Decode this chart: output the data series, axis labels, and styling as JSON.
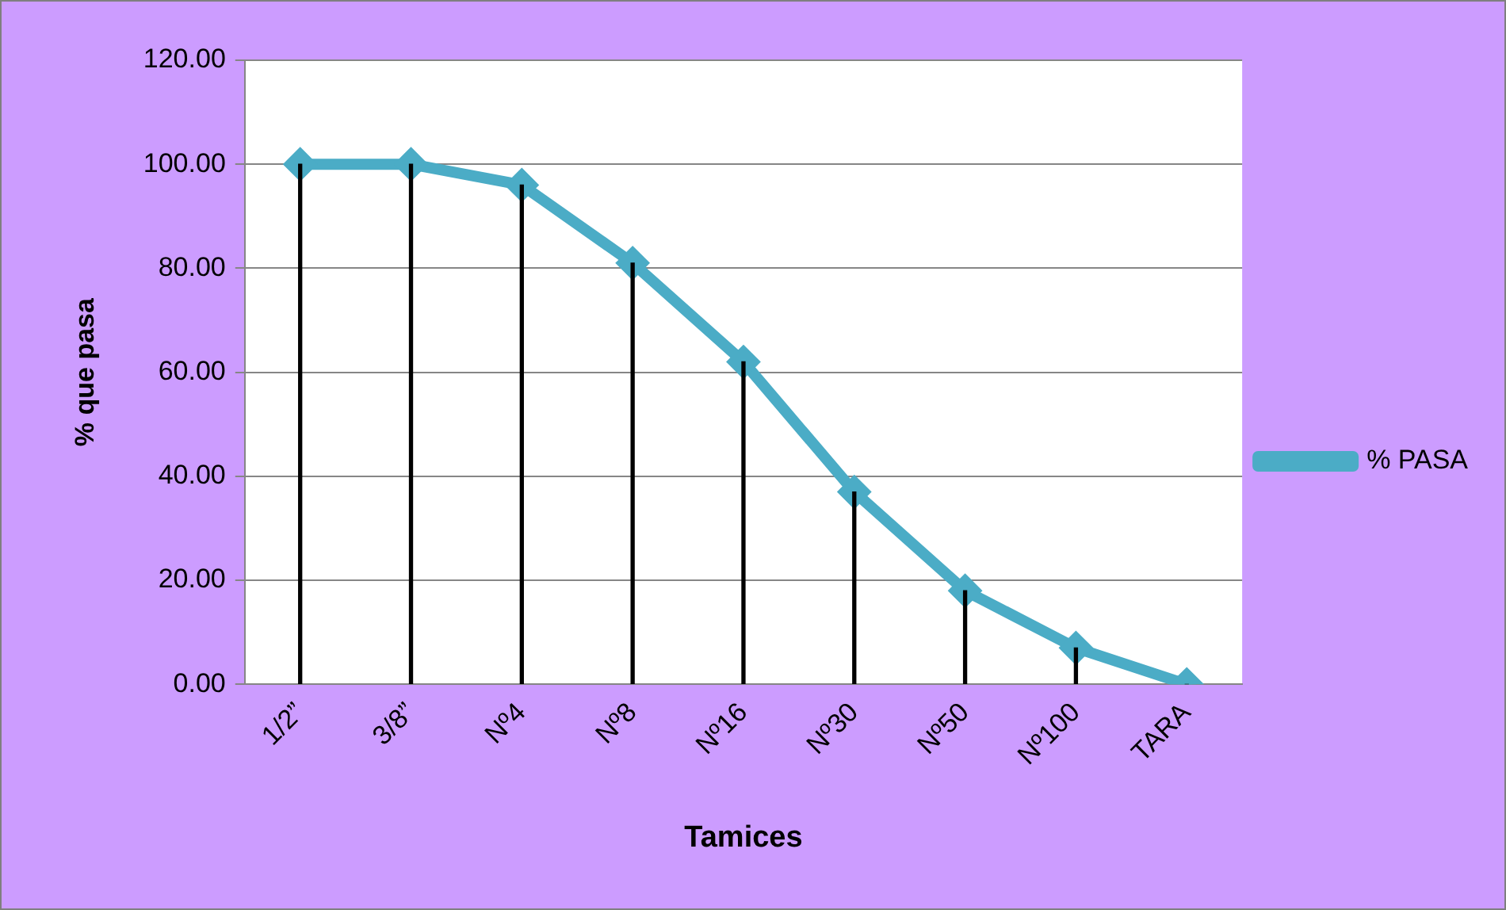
{
  "chart_data": {
    "type": "line",
    "xlabel": "Tamices",
    "ylabel": "% que pasa",
    "categories": [
      "1/2”",
      "3/8”",
      "Nº4",
      "Nº8",
      "Nº16",
      "Nº30",
      "Nº50",
      "Nº100",
      "TARA"
    ],
    "series": [
      {
        "type": "bar",
        "color": "#000000",
        "values": [
          100,
          100,
          96,
          81,
          62,
          37,
          18,
          7,
          0
        ]
      },
      {
        "name": "% PASA",
        "color": "#4bacc6",
        "values": [
          100,
          100,
          96,
          81,
          62,
          37,
          18,
          7,
          0
        ]
      }
    ],
    "ylim": [
      0,
      120
    ],
    "yticks": [
      {
        "value": 0,
        "label": "0.00"
      },
      {
        "value": 20,
        "label": "20.00"
      },
      {
        "value": 40,
        "label": "40.00"
      },
      {
        "value": 60,
        "label": "60.00"
      },
      {
        "value": 80,
        "label": "80.00"
      },
      {
        "value": 100,
        "label": "100.00"
      },
      {
        "value": 120,
        "label": "120.00"
      }
    ],
    "grid": "y",
    "legend": "right",
    "marker": "diamond",
    "line_style": "solid"
  }
}
